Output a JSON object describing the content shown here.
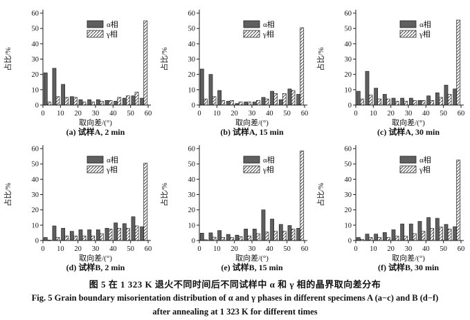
{
  "figure": {
    "caption_zh": "图 5 在 1 323 K 退火不同时间后不同试样中 α 和 γ 相的晶界取向差分布",
    "caption_en_line1": "Fig. 5 Grain boundary misorientation distribution of α and γ phases in different specimens A (a−c) and B (d−f)",
    "caption_en_line2": "after annealing at 1 323 K for different times"
  },
  "axes": {
    "ylabel": "占比/%",
    "xlabel": "取向差/(°)",
    "yticks": [
      0,
      10,
      20,
      30,
      40,
      50,
      60
    ],
    "xticks": [
      0,
      10,
      20,
      30,
      40,
      50,
      60
    ],
    "ylim": [
      0,
      60
    ],
    "xlim": [
      0,
      60
    ],
    "grid": false,
    "legend_position": "upper-center-inside"
  },
  "legend": {
    "alpha_label": "α相",
    "gamma_label": "γ相"
  },
  "colors": {
    "alpha_fill": "#5f5f5f",
    "bar_stroke": "#222222",
    "hatch_line": "#4a4a4a",
    "axis": "#1a1a1a",
    "background": "#ffffff"
  },
  "chart_data": [
    {
      "type": "bar",
      "label": "(a) 试样A, 2 min",
      "categories": [
        "0-5",
        "5-10",
        "10-15",
        "15-20",
        "20-25",
        "25-30",
        "30-35",
        "35-40",
        "40-45",
        "45-50",
        "50-55",
        "55-60"
      ],
      "series": [
        {
          "name": "α相",
          "values": [
            21,
            24,
            13.5,
            5.5,
            3.5,
            3.5,
            3.5,
            3,
            2.5,
            4.5,
            6,
            4.5
          ]
        },
        {
          "name": "γ相",
          "values": [
            2,
            5.5,
            5,
            5,
            2,
            2,
            2.5,
            3,
            5,
            6,
            8.5,
            55
          ]
        }
      ]
    },
    {
      "type": "bar",
      "label": "(b) 试样A, 15 min",
      "categories": [
        "0-5",
        "5-10",
        "10-15",
        "15-20",
        "20-25",
        "25-30",
        "30-35",
        "35-40",
        "40-45",
        "45-50",
        "50-55",
        "55-60"
      ],
      "series": [
        {
          "name": "α相",
          "values": [
            23.5,
            20,
            9.5,
            2.5,
            1,
            2,
            2,
            5,
            9,
            3.5,
            10.5,
            7
          ]
        },
        {
          "name": "γ相",
          "values": [
            4,
            5.5,
            3,
            3,
            2,
            2,
            3,
            4,
            7.5,
            7.5,
            9.5,
            50.5
          ]
        }
      ]
    },
    {
      "type": "bar",
      "label": "(c) 试样A, 30 min",
      "categories": [
        "0-5",
        "5-10",
        "10-15",
        "15-20",
        "20-25",
        "25-30",
        "30-35",
        "35-40",
        "40-45",
        "45-50",
        "50-55",
        "55-60"
      ],
      "series": [
        {
          "name": "α相",
          "values": [
            9,
            22,
            11,
            7,
            4.5,
            4.5,
            4.5,
            3,
            6,
            8,
            13,
            10.5
          ]
        },
        {
          "name": "γ相",
          "values": [
            4,
            6.5,
            4,
            4,
            2.5,
            2.5,
            3,
            3,
            3,
            5,
            7,
            55.5
          ]
        }
      ]
    },
    {
      "type": "bar",
      "label": "(d) 试样B, 2 min",
      "categories": [
        "0-5",
        "5-10",
        "10-15",
        "15-20",
        "20-25",
        "25-30",
        "30-35",
        "35-40",
        "40-45",
        "45-50",
        "50-55",
        "55-60"
      ],
      "series": [
        {
          "name": "α相",
          "values": [
            2,
            9.5,
            8,
            6,
            7,
            7,
            7,
            8,
            11.5,
            11,
            15.5,
            9
          ]
        },
        {
          "name": "γ相",
          "values": [
            0.3,
            2,
            3,
            3,
            3,
            3,
            4.5,
            7.5,
            8,
            8,
            9.5,
            50.5
          ]
        }
      ]
    },
    {
      "type": "bar",
      "label": "(e) 试样B, 15 min",
      "categories": [
        "0-5",
        "5-10",
        "10-15",
        "15-20",
        "20-25",
        "25-30",
        "30-35",
        "35-40",
        "40-45",
        "45-50",
        "50-55",
        "55-60"
      ],
      "series": [
        {
          "name": "α相",
          "values": [
            4.8,
            5,
            6.5,
            4,
            3.5,
            7.5,
            7.5,
            20,
            14,
            10.5,
            9.8,
            8
          ]
        },
        {
          "name": "γ相",
          "values": [
            0.5,
            2.2,
            2,
            2,
            2.5,
            3,
            4.5,
            5.5,
            6,
            6,
            7.5,
            58.5
          ]
        }
      ]
    },
    {
      "type": "bar",
      "label": "(f) 试样B, 30 min",
      "categories": [
        "0-5",
        "5-10",
        "10-15",
        "15-20",
        "20-25",
        "25-30",
        "30-35",
        "35-40",
        "40-45",
        "45-50",
        "50-55",
        "55-60"
      ],
      "series": [
        {
          "name": "α相",
          "values": [
            2,
            4.2,
            4.2,
            5.2,
            7,
            10.8,
            10.8,
            12.5,
            15,
            14.5,
            10.5,
            9
          ]
        },
        {
          "name": "γ相",
          "values": [
            0.8,
            2,
            2,
            2,
            2.8,
            2.8,
            4.5,
            6,
            8,
            8.8,
            7.5,
            52.5
          ]
        }
      ]
    }
  ]
}
